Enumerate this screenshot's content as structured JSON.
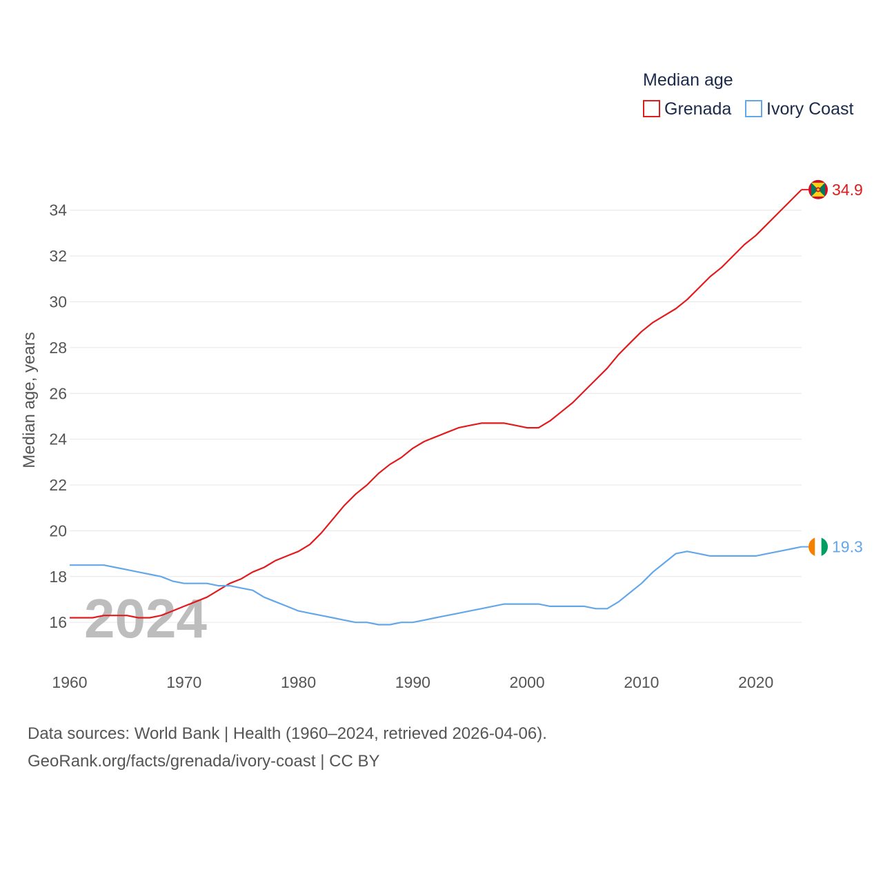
{
  "chart_data": {
    "type": "line",
    "legend_title": "Median age",
    "ylabel": "Median age, years",
    "xlim": [
      1960,
      2024
    ],
    "ylim": [
      14.8,
      35.8
    ],
    "x_ticks": [
      1960,
      1970,
      1980,
      1990,
      2000,
      2010,
      2020
    ],
    "y_ticks": [
      16,
      18,
      20,
      22,
      24,
      26,
      28,
      30,
      32,
      34
    ],
    "highlight_year": "2024",
    "legend_position": "top-right",
    "series": [
      {
        "name": "Grenada",
        "color": "#e31a1c",
        "end_label": "34.9",
        "flag": "grenada-flag",
        "x": [
          1960,
          1961,
          1962,
          1963,
          1964,
          1965,
          1966,
          1967,
          1968,
          1969,
          1970,
          1971,
          1972,
          1973,
          1974,
          1975,
          1976,
          1977,
          1978,
          1979,
          1980,
          1981,
          1982,
          1983,
          1984,
          1985,
          1986,
          1987,
          1988,
          1989,
          1990,
          1991,
          1992,
          1993,
          1994,
          1995,
          1996,
          1997,
          1998,
          1999,
          2000,
          2001,
          2002,
          2003,
          2004,
          2005,
          2006,
          2007,
          2008,
          2009,
          2010,
          2011,
          2012,
          2013,
          2014,
          2015,
          2016,
          2017,
          2018,
          2019,
          2020,
          2021,
          2022,
          2023,
          2024
        ],
        "values": [
          16.2,
          16.2,
          16.2,
          16.3,
          16.3,
          16.3,
          16.2,
          16.2,
          16.3,
          16.5,
          16.7,
          16.9,
          17.1,
          17.4,
          17.7,
          17.9,
          18.2,
          18.4,
          18.7,
          18.9,
          19.1,
          19.4,
          19.9,
          20.5,
          21.1,
          21.6,
          22.0,
          22.5,
          22.9,
          23.2,
          23.6,
          23.9,
          24.1,
          24.3,
          24.5,
          24.6,
          24.7,
          24.7,
          24.7,
          24.6,
          24.5,
          24.5,
          24.8,
          25.2,
          25.6,
          26.1,
          26.6,
          27.1,
          27.7,
          28.2,
          28.7,
          29.1,
          29.4,
          29.7,
          30.1,
          30.6,
          31.1,
          31.5,
          32.0,
          32.5,
          32.9,
          33.4,
          33.9,
          34.4,
          34.9
        ]
      },
      {
        "name": "Ivory Coast",
        "color": "#64a7e9",
        "end_label": "19.3",
        "flag": "ivory-coast-flag",
        "x": [
          1960,
          1961,
          1962,
          1963,
          1964,
          1965,
          1966,
          1967,
          1968,
          1969,
          1970,
          1971,
          1972,
          1973,
          1974,
          1975,
          1976,
          1977,
          1978,
          1979,
          1980,
          1981,
          1982,
          1983,
          1984,
          1985,
          1986,
          1987,
          1988,
          1989,
          1990,
          1991,
          1992,
          1993,
          1994,
          1995,
          1996,
          1997,
          1998,
          1999,
          2000,
          2001,
          2002,
          2003,
          2004,
          2005,
          2006,
          2007,
          2008,
          2009,
          2010,
          2011,
          2012,
          2013,
          2014,
          2015,
          2016,
          2017,
          2018,
          2019,
          2020,
          2021,
          2022,
          2023,
          2024
        ],
        "values": [
          18.5,
          18.5,
          18.5,
          18.5,
          18.4,
          18.3,
          18.2,
          18.1,
          18.0,
          17.8,
          17.7,
          17.7,
          17.7,
          17.6,
          17.6,
          17.5,
          17.4,
          17.1,
          16.9,
          16.7,
          16.5,
          16.4,
          16.3,
          16.2,
          16.1,
          16.0,
          16.0,
          15.9,
          15.9,
          16.0,
          16.0,
          16.1,
          16.2,
          16.3,
          16.4,
          16.5,
          16.6,
          16.7,
          16.8,
          16.8,
          16.8,
          16.8,
          16.7,
          16.7,
          16.7,
          16.7,
          16.6,
          16.6,
          16.9,
          17.3,
          17.7,
          18.2,
          18.6,
          19.0,
          19.1,
          19.0,
          18.9,
          18.9,
          18.9,
          18.9,
          18.9,
          19.0,
          19.1,
          19.2,
          19.3
        ]
      }
    ]
  },
  "source": {
    "line1": "Data sources: World Bank | Health (1960–2024, retrieved 2026-04-06).",
    "line2": "GeoRank.org/facts/grenada/ivory-coast | CC BY"
  }
}
